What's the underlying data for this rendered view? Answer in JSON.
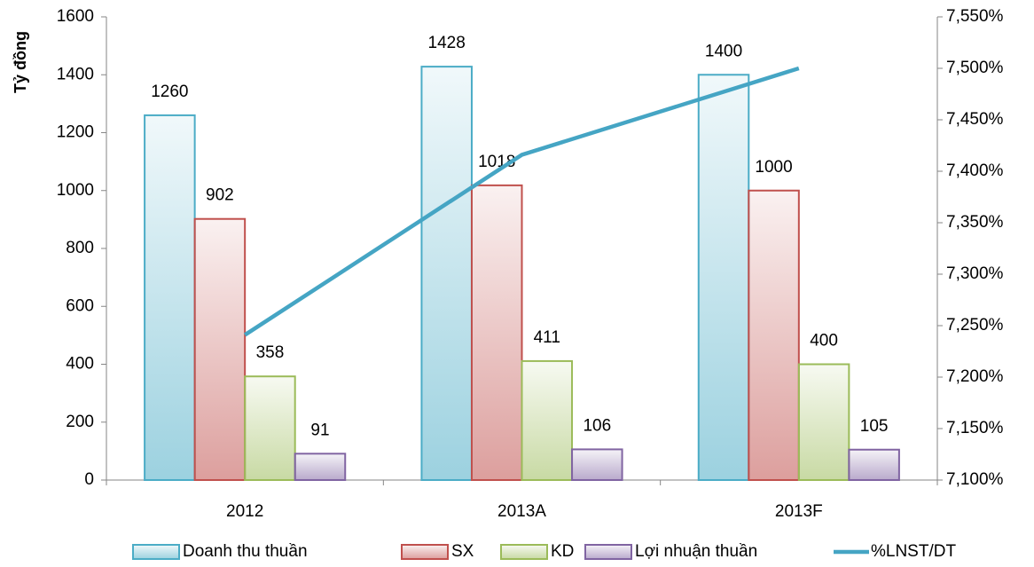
{
  "chart_data": {
    "type": "bar",
    "y_axis_label": "Tỷ đồng",
    "categories": [
      "2012",
      "2013A",
      "2013F"
    ],
    "series": [
      {
        "name": "Doanh thu thuần",
        "color": "#4bacc6",
        "values": [
          1260,
          1428,
          1400
        ]
      },
      {
        "name": "SX",
        "color": "#c0504d",
        "values": [
          902,
          1018,
          1000
        ]
      },
      {
        "name": "KD",
        "color": "#9bbb59",
        "values": [
          358,
          411,
          400
        ]
      },
      {
        "name": "Lợi nhuận thuần",
        "color": "#8064a2",
        "values": [
          91,
          106,
          105
        ]
      },
      {
        "name": "%LNST/DT",
        "color": "#45a5c4",
        "type": "line",
        "axis": "y2",
        "values": [
          7.241,
          7.416,
          7.5
        ]
      }
    ],
    "ylim": [
      0,
      1600
    ],
    "yticks": [
      0,
      200,
      400,
      600,
      800,
      1000,
      1200,
      1400,
      1600
    ],
    "y2lim": [
      7.1,
      7.55
    ],
    "y2ticks": [
      {
        "value": 7.1,
        "label": "7,100%"
      },
      {
        "value": 7.15,
        "label": "7,150%"
      },
      {
        "value": 7.2,
        "label": "7,200%"
      },
      {
        "value": 7.25,
        "label": "7,250%"
      },
      {
        "value": 7.3,
        "label": "7,300%"
      },
      {
        "value": 7.35,
        "label": "7,350%"
      },
      {
        "value": 7.4,
        "label": "7,400%"
      },
      {
        "value": 7.45,
        "label": "7,450%"
      },
      {
        "value": 7.5,
        "label": "7,500%"
      },
      {
        "value": 7.55,
        "label": "7,550%"
      }
    ],
    "legend": "bottom"
  }
}
